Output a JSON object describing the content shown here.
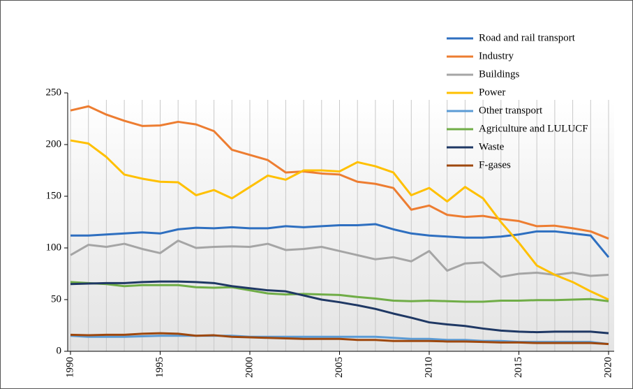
{
  "chart_data": {
    "type": "line",
    "x": [
      1990,
      1991,
      1992,
      1993,
      1994,
      1995,
      1996,
      1997,
      1998,
      1999,
      2000,
      2001,
      2002,
      2003,
      2004,
      2005,
      2006,
      2007,
      2008,
      2009,
      2010,
      2011,
      2012,
      2013,
      2014,
      2015,
      2016,
      2017,
      2018,
      2019,
      2020
    ],
    "xlim": [
      1990,
      2020
    ],
    "xticks": [
      1990,
      1995,
      2000,
      2005,
      2010,
      2015,
      2020
    ],
    "ylim": [
      0,
      250
    ],
    "yticks": [
      0,
      50,
      100,
      150,
      200,
      250
    ],
    "grid": "x",
    "legend": "top-right",
    "series": [
      {
        "name": "Road and rail transport",
        "color": "#2e6fc0",
        "values": [
          112,
          112,
          113,
          114,
          115,
          114,
          118,
          119.5,
          119,
          120,
          119,
          119,
          121,
          120,
          121,
          122,
          122,
          123,
          118,
          114,
          112,
          111,
          110,
          110,
          111,
          113,
          116,
          116,
          114,
          112,
          91
        ]
      },
      {
        "name": "Industry",
        "color": "#ed7d31",
        "values": [
          233,
          237,
          229,
          223,
          218,
          218.5,
          222,
          219.5,
          213,
          195,
          190,
          185,
          173,
          174,
          172,
          171,
          164,
          162,
          158,
          137,
          141,
          132,
          130,
          131,
          128,
          126,
          121,
          121.5,
          119,
          116,
          109
        ]
      },
      {
        "name": "Buildings",
        "color": "#a5a5a5",
        "values": [
          93,
          103,
          101,
          104,
          99,
          95,
          107,
          100,
          101,
          101.5,
          101,
          104,
          98,
          99,
          101,
          97,
          93,
          89,
          91,
          87,
          97,
          78,
          85,
          86,
          72,
          75,
          76,
          74,
          76,
          73,
          74
        ]
      },
      {
        "name": "Power",
        "color": "#ffc000",
        "values": [
          204,
          201,
          188,
          171,
          167,
          164,
          163.5,
          151,
          156,
          148,
          159,
          170,
          166,
          175,
          175,
          174,
          183,
          179,
          173,
          151,
          158,
          145,
          159,
          148,
          125,
          105,
          83,
          74,
          67,
          58,
          50
        ]
      },
      {
        "name": "Other transport",
        "color": "#5b9bd5",
        "values": [
          15,
          14,
          14,
          14,
          14.5,
          15,
          15,
          15,
          15,
          15,
          14,
          14,
          14,
          14,
          14,
          14,
          14,
          14,
          13,
          12,
          12,
          11,
          11,
          10,
          10,
          9,
          9,
          9,
          9,
          9,
          7
        ]
      },
      {
        "name": "Agriculture and LULUCF",
        "color": "#70ad47",
        "values": [
          67,
          66,
          65,
          63,
          64,
          64,
          64,
          62,
          61.5,
          62,
          59,
          56,
          55,
          55.5,
          55,
          54.5,
          52.5,
          51,
          49,
          48.5,
          49,
          48.5,
          48,
          48,
          49,
          49,
          49.5,
          49.5,
          50,
          50.5,
          48.5
        ]
      },
      {
        "name": "Waste",
        "color": "#1f3864",
        "values": [
          65,
          65.5,
          66,
          66,
          67,
          67.5,
          67.5,
          67,
          66,
          63,
          61,
          59,
          58,
          54,
          50,
          47.5,
          44.5,
          41,
          36.5,
          32.5,
          28,
          26,
          24.5,
          22,
          20,
          19,
          18.5,
          19,
          19,
          19,
          17.5
        ]
      },
      {
        "name": "F-gases",
        "color": "#9e480e",
        "values": [
          16,
          15.5,
          16,
          16,
          17,
          17.5,
          17,
          15,
          15.5,
          14,
          13.5,
          13,
          12.5,
          12,
          12,
          12,
          11,
          11,
          10,
          10,
          10,
          9.5,
          9.5,
          9,
          8.5,
          8.5,
          8,
          8,
          8,
          8,
          7
        ]
      }
    ]
  }
}
